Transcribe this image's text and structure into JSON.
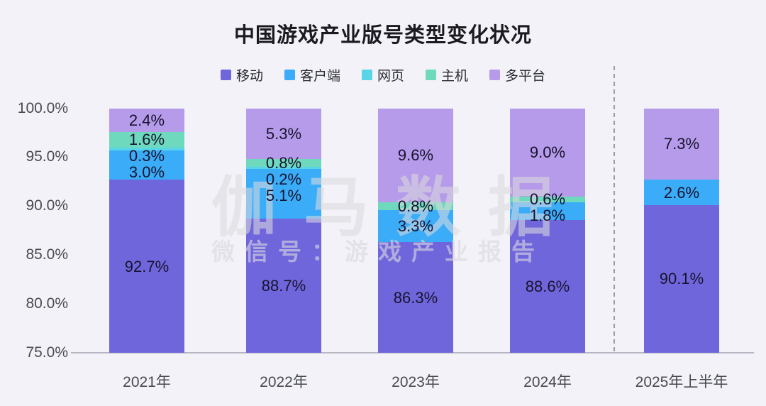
{
  "title": "中国游戏产业版号类型变化状况",
  "watermark": {
    "line1": "伽马数据",
    "line2": "微信号：游戏产业报告"
  },
  "colors": {
    "background": "#F2F2F8",
    "mobile": "#7066DC",
    "client": "#3AACF8",
    "web": "#58D5E6",
    "console": "#6FD9BD",
    "multi_platform": "#B59BE9",
    "axis_text": "#4a4a52",
    "value_text": "#17132e",
    "baseline": "#b6b6c2",
    "separator": "#9a9aa6"
  },
  "chart_data": {
    "type": "bar",
    "stacked": true,
    "title": "中国游戏产业版号类型变化状况",
    "categories": [
      "2021年",
      "2022年",
      "2023年",
      "2024年",
      "2025年上半年"
    ],
    "series": [
      {
        "key": "mobile",
        "name": "移动",
        "color": "#7066DC",
        "values": [
          92.7,
          88.7,
          86.3,
          88.6,
          90.1
        ]
      },
      {
        "key": "client",
        "name": "客户端",
        "color": "#3AACF8",
        "values": [
          3.0,
          5.1,
          3.3,
          1.8,
          2.6
        ]
      },
      {
        "key": "web",
        "name": "网页",
        "color": "#58D5E6",
        "values": [
          0.3,
          0.2,
          0,
          0,
          0
        ]
      },
      {
        "key": "console",
        "name": "主机",
        "color": "#6FD9BD",
        "values": [
          1.6,
          0.8,
          0.8,
          0.6,
          0
        ]
      },
      {
        "key": "multi-platform",
        "name": "多平台",
        "color": "#B59BE9",
        "values": [
          2.4,
          5.3,
          9.6,
          9.0,
          7.3
        ]
      }
    ],
    "ylim": [
      75,
      100
    ],
    "yticks": [
      "100.0%",
      "95.0%",
      "90.0%",
      "85.0%",
      "80.0%",
      "75.0%"
    ],
    "grid": false,
    "legend_position": "top",
    "value_label_format": "{value}%",
    "separator": {
      "style": "dashed",
      "between": [
        "2024年",
        "2025年上半年"
      ]
    }
  }
}
